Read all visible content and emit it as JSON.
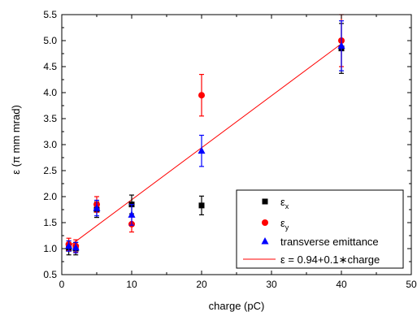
{
  "chart_data": {
    "type": "scatter",
    "xlabel": "charge (pC)",
    "ylabel": "ε (π mm mrad)",
    "xlim": [
      0,
      50
    ],
    "ylim": [
      0.5,
      5.5
    ],
    "x_ticks": [
      "0",
      "10",
      "20",
      "30",
      "40",
      "50"
    ],
    "y_ticks": [
      "0.5",
      "1.0",
      "1.5",
      "2.0",
      "2.5",
      "3.0",
      "3.5",
      "4.0",
      "4.5",
      "5.0",
      "5.5"
    ],
    "grid": false,
    "legend_position": "bottom-right",
    "series": [
      {
        "name": "εx",
        "label_main": "ε",
        "label_sub": "x",
        "marker": "square",
        "color": "#000000",
        "x": [
          1,
          2,
          5,
          10,
          20,
          40
        ],
        "y": [
          1.0,
          1.0,
          1.75,
          1.85,
          1.83,
          4.85
        ],
        "err": [
          0.12,
          0.12,
          0.15,
          0.18,
          0.18,
          0.48
        ]
      },
      {
        "name": "εy",
        "label_main": "ε",
        "label_sub": "y",
        "marker": "circle",
        "color": "#ff0000",
        "x": [
          1,
          2,
          5,
          10,
          20,
          40
        ],
        "y": [
          1.08,
          1.05,
          1.85,
          1.47,
          3.95,
          5.0
        ],
        "err": [
          0.12,
          0.12,
          0.15,
          0.15,
          0.4,
          0.5
        ]
      },
      {
        "name": "transverse emittance",
        "label_main": "transverse emittance",
        "label_sub": "",
        "marker": "triangle",
        "color": "#0000ff",
        "x": [
          1,
          2,
          5,
          10,
          20,
          40
        ],
        "y": [
          1.05,
          1.02,
          1.78,
          1.65,
          2.88,
          4.9
        ],
        "err": [
          0.1,
          0.1,
          0.15,
          0.2,
          0.3,
          0.48
        ]
      }
    ],
    "fit": {
      "name": "ε = 0.94+0.1∗charge",
      "color": "#ff0000",
      "intercept": 0.94,
      "slope": 0.1,
      "x_range": [
        1,
        40
      ]
    }
  }
}
